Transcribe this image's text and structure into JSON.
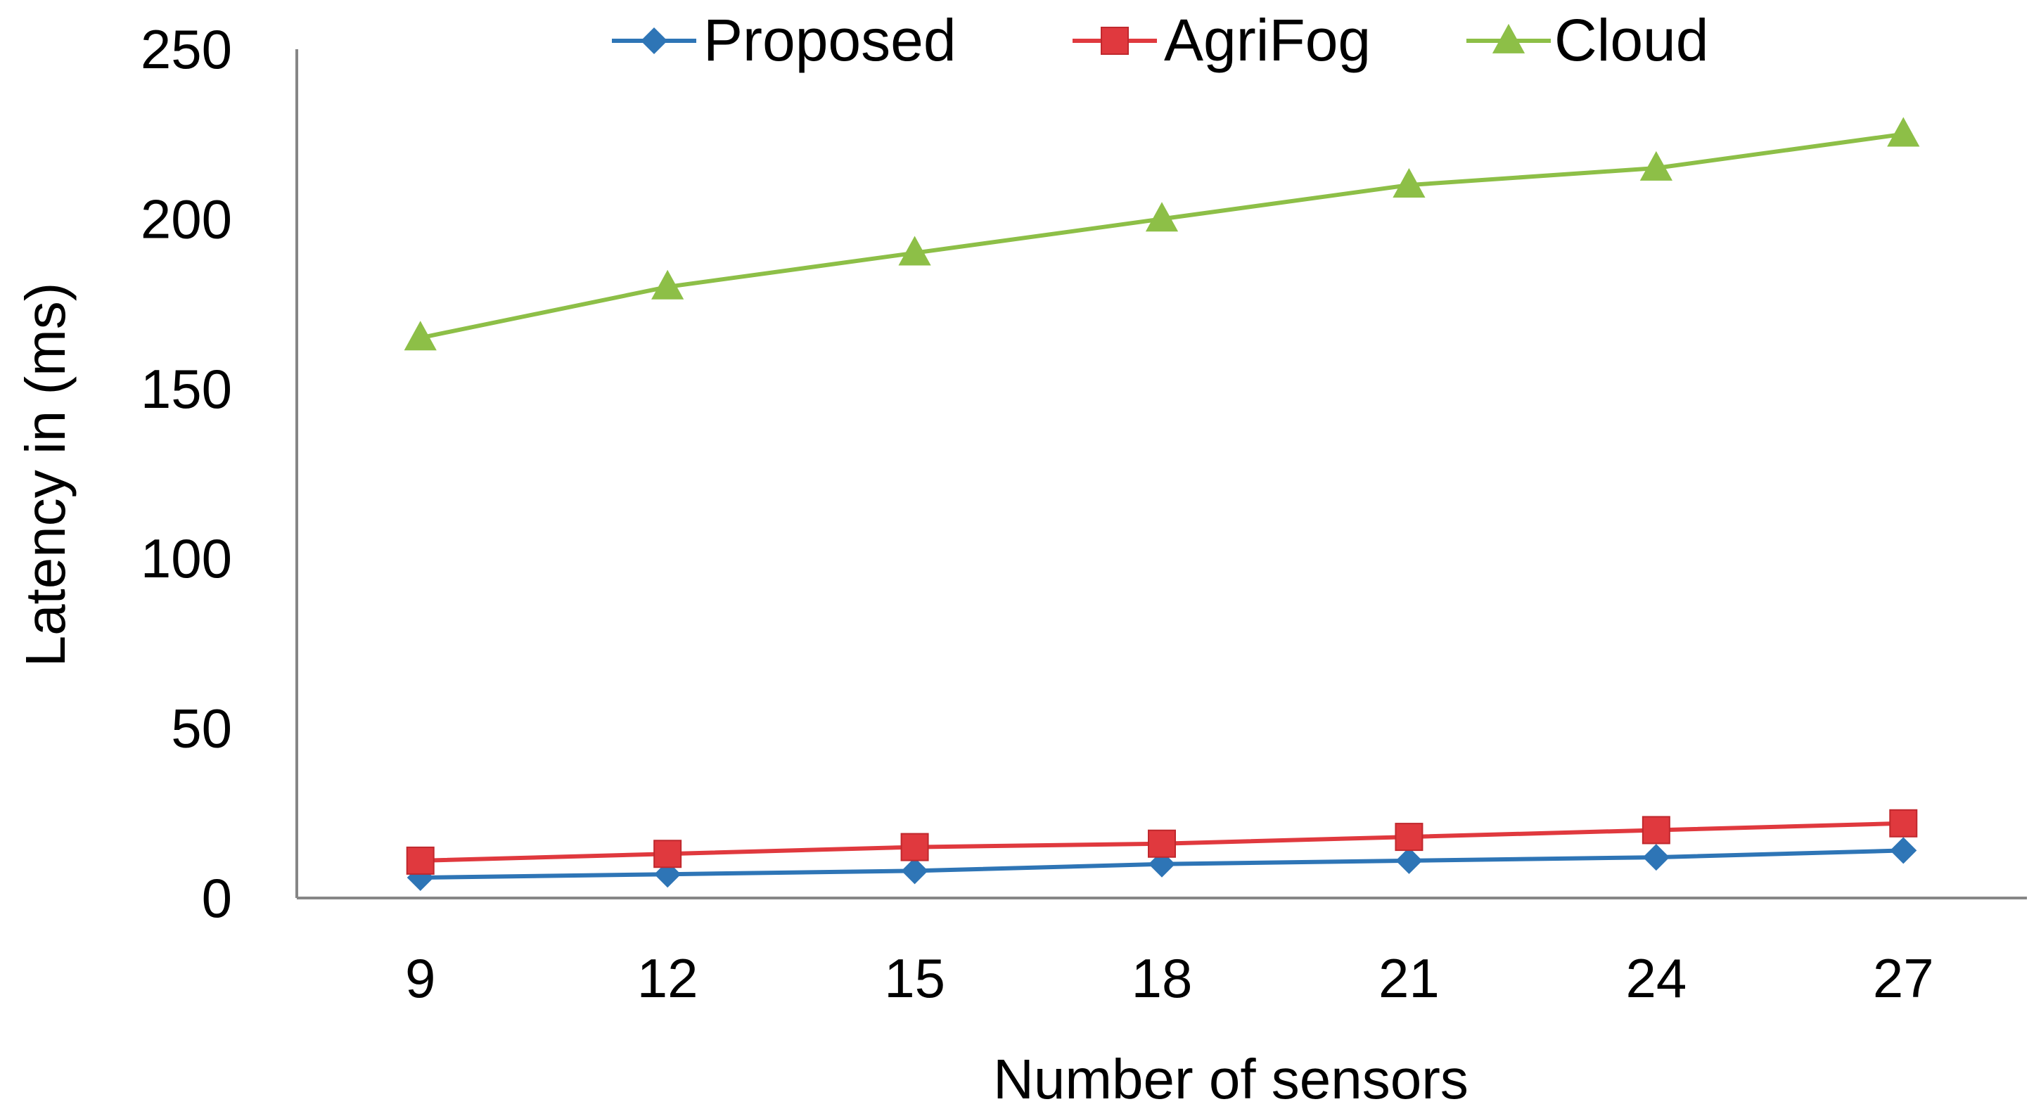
{
  "chart_data": {
    "type": "line",
    "title": "",
    "xlabel": "Number of sensors",
    "ylabel": "Latency in (ms)",
    "categories": [
      "9",
      "12",
      "15",
      "18",
      "21",
      "24",
      "27"
    ],
    "ylim": [
      0,
      250
    ],
    "yticks": [
      "0",
      "50",
      "100",
      "150",
      "200",
      "250"
    ],
    "grid": false,
    "legend_position": "top",
    "series": [
      {
        "name": "Proposed",
        "color": "#2E75B6",
        "marker": "diamond",
        "values": [
          6,
          7,
          8,
          10,
          11,
          12,
          14
        ]
      },
      {
        "name": "AgriFog",
        "color": "#E0393E",
        "marker": "square",
        "values": [
          11,
          13,
          15,
          16,
          18,
          20,
          22
        ]
      },
      {
        "name": "Cloud",
        "color": "#8DBF47",
        "marker": "triangle",
        "values": [
          165,
          180,
          190,
          200,
          210,
          215,
          225
        ]
      }
    ]
  }
}
